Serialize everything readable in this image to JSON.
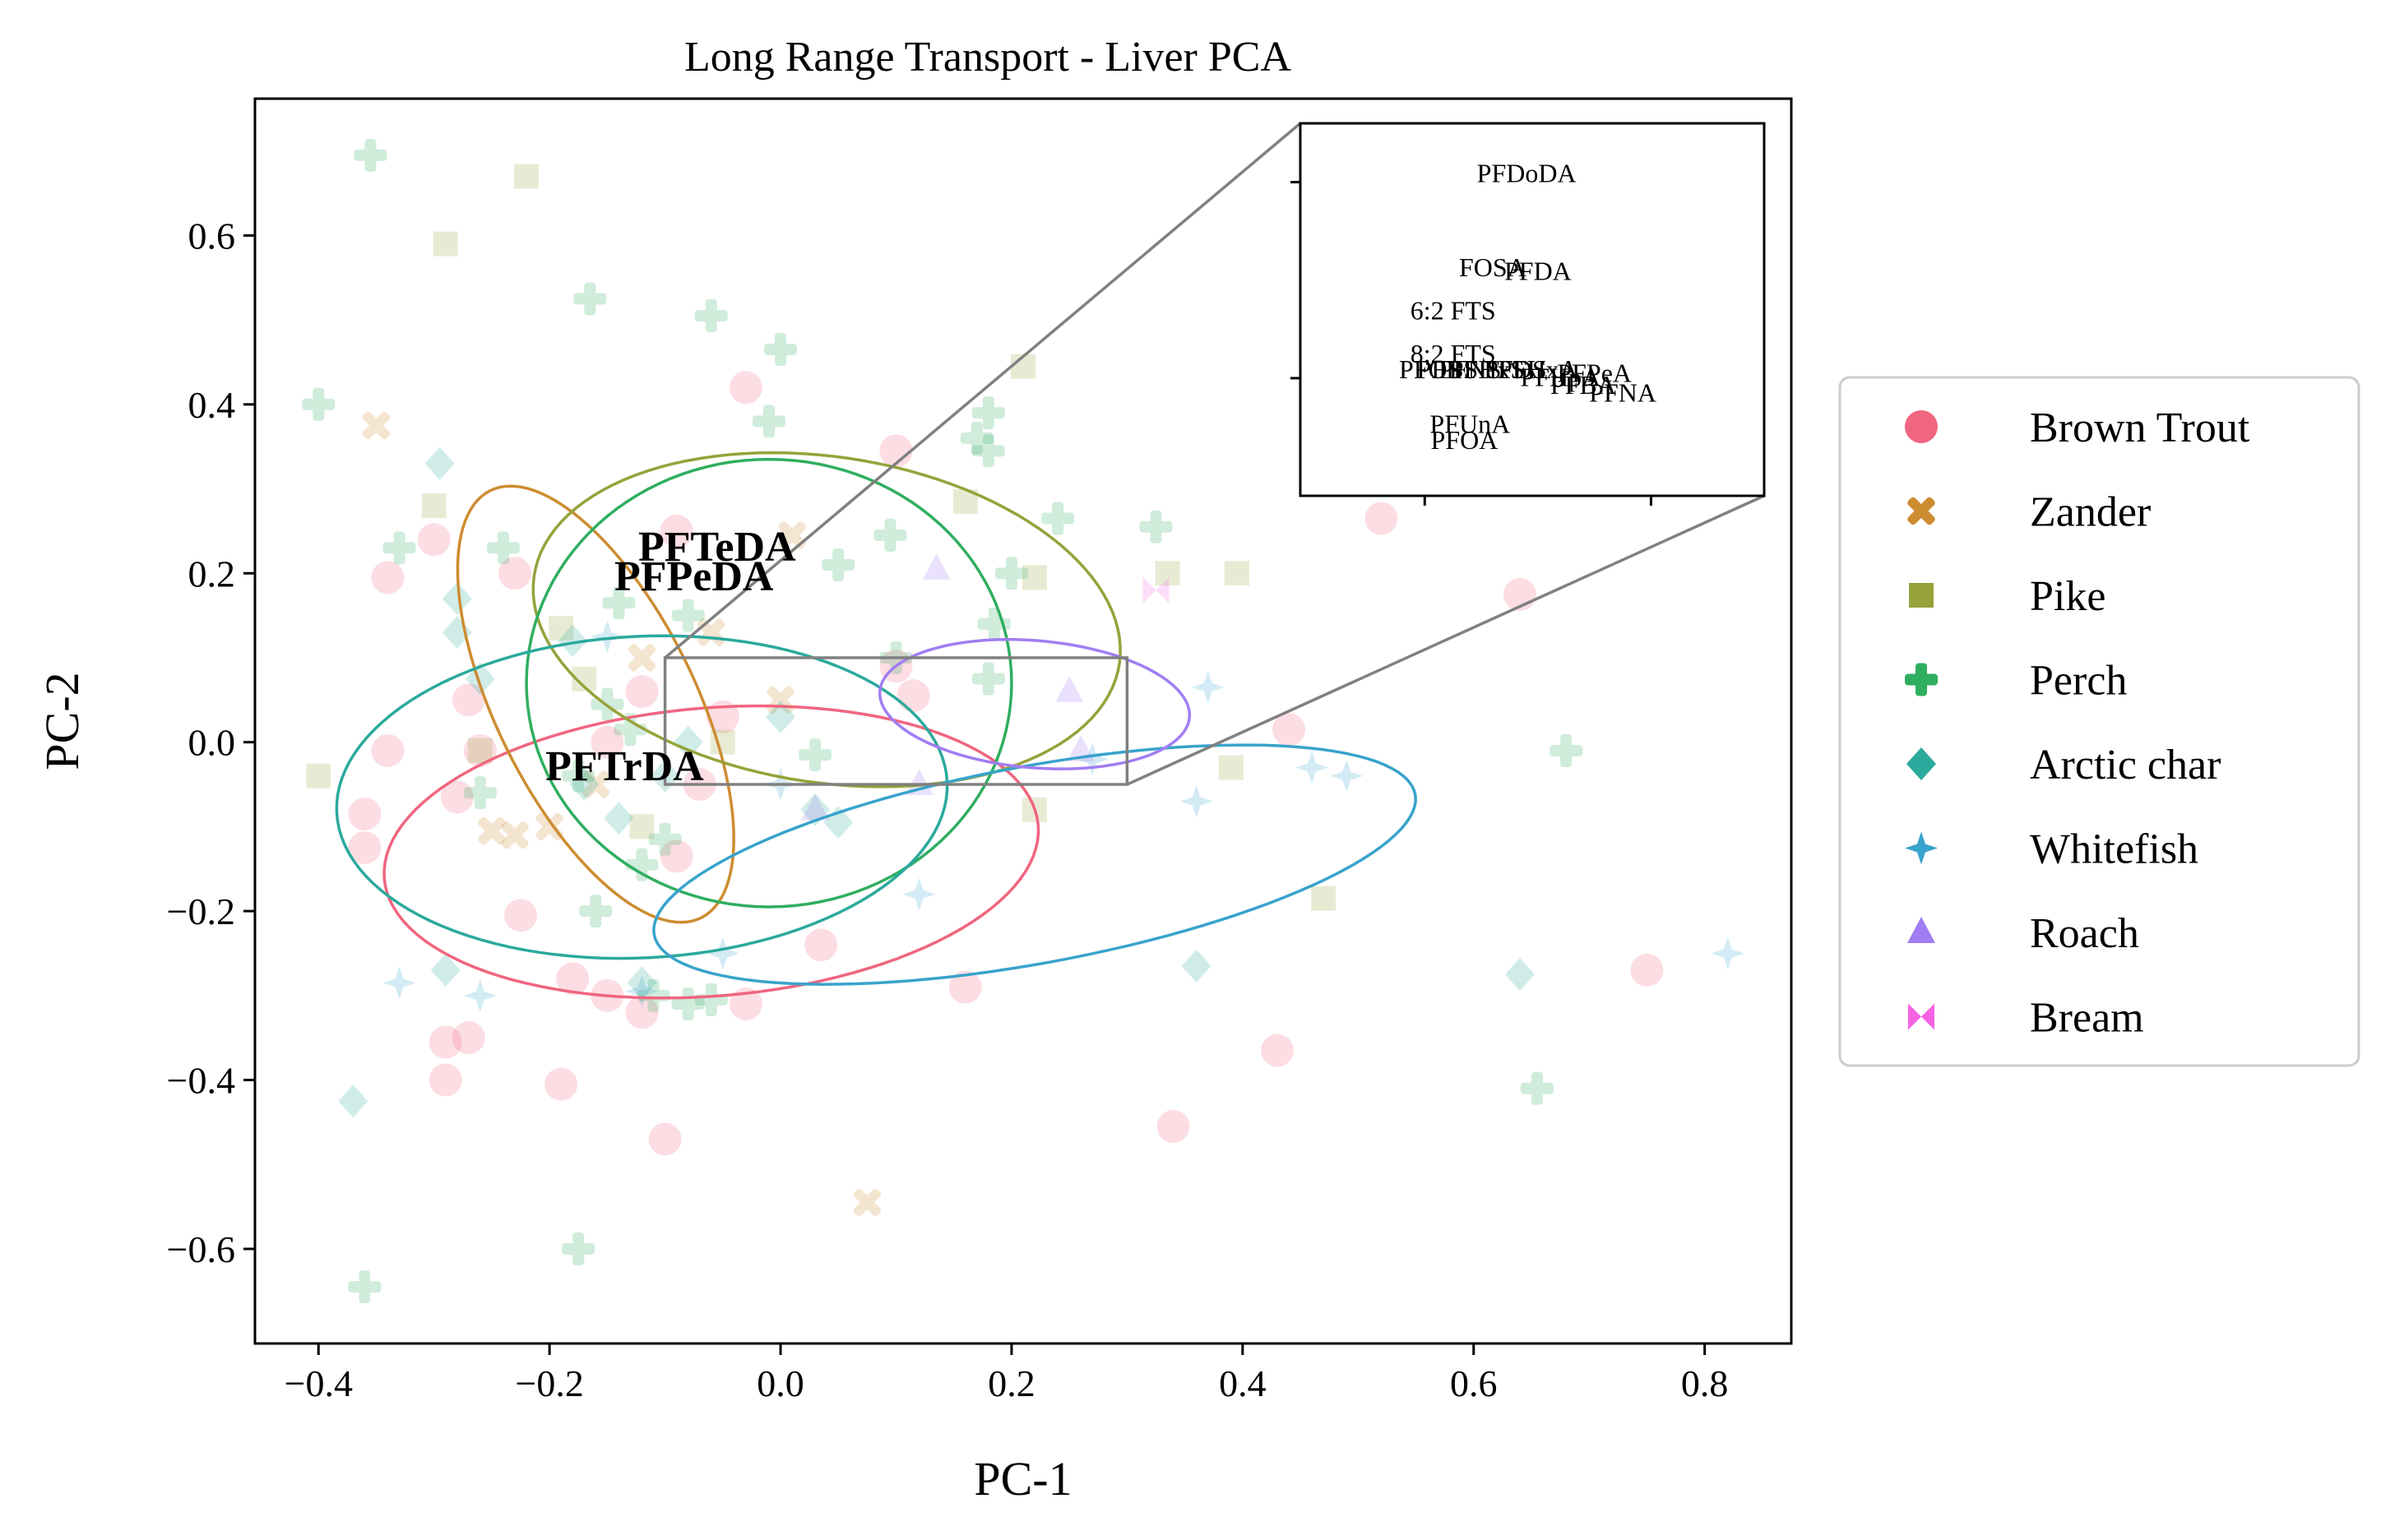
{
  "chart_data": {
    "type": "scatter",
    "title": "Long Range Transport - Liver PCA",
    "xlabel": "PC-1",
    "ylabel": "PC-2",
    "xlim": [
      -0.455,
      0.875
    ],
    "ylim": [
      -0.712,
      0.762
    ],
    "xticks": [
      -0.4,
      -0.2,
      0.0,
      0.2,
      0.4,
      0.6,
      0.8
    ],
    "xtick_labels": [
      "−0.4",
      "−0.2",
      "0.0",
      "0.2",
      "0.4",
      "0.6",
      "0.8"
    ],
    "yticks": [
      -0.6,
      -0.4,
      -0.2,
      0.0,
      0.2,
      0.4,
      0.6
    ],
    "ytick_labels": [
      "−0.6",
      "−0.4",
      "−0.2",
      "0.0",
      "0.2",
      "0.4",
      "0.6"
    ],
    "grid": false,
    "legend_position": "right, outside plot",
    "point_alpha": 0.22,
    "series": [
      {
        "name": "Brown Trout",
        "color": "#f0657f",
        "marker": "circle",
        "points": [
          [
            -0.03,
            0.42
          ],
          [
            0.1,
            0.345
          ],
          [
            -0.3,
            0.24
          ],
          [
            -0.34,
            0.195
          ],
          [
            -0.09,
            0.25
          ],
          [
            -0.34,
            -0.01
          ],
          [
            -0.36,
            -0.085
          ],
          [
            -0.36,
            -0.125
          ],
          [
            -0.28,
            -0.065
          ],
          [
            -0.27,
            0.05
          ],
          [
            -0.26,
            -0.01
          ],
          [
            -0.15,
            0.0
          ],
          [
            -0.12,
            0.06
          ],
          [
            -0.07,
            -0.05
          ],
          [
            -0.09,
            -0.135
          ],
          [
            -0.225,
            -0.205
          ],
          [
            -0.18,
            -0.28
          ],
          [
            -0.15,
            -0.3
          ],
          [
            -0.12,
            -0.32
          ],
          [
            -0.03,
            -0.31
          ],
          [
            0.035,
            -0.24
          ],
          [
            0.16,
            -0.29
          ],
          [
            -0.29,
            -0.355
          ],
          [
            -0.27,
            -0.35
          ],
          [
            -0.29,
            -0.4
          ],
          [
            -0.19,
            -0.405
          ],
          [
            -0.1,
            -0.47
          ],
          [
            0.115,
            0.055
          ],
          [
            0.34,
            -0.455
          ],
          [
            0.43,
            -0.365
          ],
          [
            0.44,
            0.015
          ],
          [
            0.52,
            0.265
          ],
          [
            0.64,
            0.175
          ],
          [
            0.75,
            -0.27
          ],
          [
            0.1,
            0.09
          ],
          [
            -0.05,
            0.03
          ],
          [
            -0.23,
            0.2
          ]
        ]
      },
      {
        "name": "Zander",
        "color": "#cd8c30",
        "marker": "x",
        "points": [
          [
            -0.35,
            0.375
          ],
          [
            0.01,
            0.245
          ],
          [
            -0.12,
            0.1
          ],
          [
            -0.25,
            -0.105
          ],
          [
            -0.23,
            -0.11
          ],
          [
            -0.2,
            -0.1
          ],
          [
            0.075,
            -0.545
          ],
          [
            -0.06,
            0.13
          ],
          [
            0.0,
            0.05
          ],
          [
            -0.16,
            -0.05
          ]
        ]
      },
      {
        "name": "Pike",
        "color": "#96a23a",
        "marker": "square",
        "points": [
          [
            -0.22,
            0.67
          ],
          [
            -0.29,
            0.59
          ],
          [
            0.21,
            0.445
          ],
          [
            -0.3,
            0.28
          ],
          [
            0.16,
            0.285
          ],
          [
            0.22,
            0.195
          ],
          [
            0.335,
            0.2
          ],
          [
            0.395,
            0.2
          ],
          [
            -0.19,
            0.135
          ],
          [
            -0.4,
            -0.04
          ],
          [
            -0.17,
            0.075
          ],
          [
            -0.12,
            -0.1
          ],
          [
            0.22,
            -0.08
          ],
          [
            0.39,
            -0.03
          ],
          [
            0.47,
            -0.185
          ],
          [
            -0.26,
            -0.01
          ],
          [
            -0.05,
            0.0
          ]
        ]
      },
      {
        "name": "Perch",
        "color": "#2fae60",
        "marker": "plus",
        "points": [
          [
            -0.355,
            0.695
          ],
          [
            -0.165,
            0.525
          ],
          [
            -0.06,
            0.505
          ],
          [
            0.0,
            0.465
          ],
          [
            -0.4,
            0.4
          ],
          [
            -0.01,
            0.38
          ],
          [
            0.18,
            0.39
          ],
          [
            0.17,
            0.36
          ],
          [
            0.18,
            0.345
          ],
          [
            -0.33,
            0.23
          ],
          [
            -0.24,
            0.23
          ],
          [
            0.05,
            0.21
          ],
          [
            0.095,
            0.245
          ],
          [
            0.24,
            0.265
          ],
          [
            0.325,
            0.255
          ],
          [
            -0.14,
            0.165
          ],
          [
            -0.08,
            0.15
          ],
          [
            0.185,
            0.14
          ],
          [
            0.18,
            0.075
          ],
          [
            -0.15,
            0.045
          ],
          [
            -0.13,
            0.015
          ],
          [
            0.03,
            -0.015
          ],
          [
            -0.175,
            -0.04
          ],
          [
            -0.26,
            -0.06
          ],
          [
            -0.1,
            -0.115
          ],
          [
            -0.12,
            -0.145
          ],
          [
            -0.16,
            -0.2
          ],
          [
            -0.08,
            -0.31
          ],
          [
            -0.11,
            -0.3
          ],
          [
            -0.06,
            -0.305
          ],
          [
            -0.175,
            -0.6
          ],
          [
            -0.36,
            -0.645
          ],
          [
            0.68,
            -0.01
          ],
          [
            0.655,
            -0.41
          ],
          [
            0.2,
            0.2
          ],
          [
            0.1,
            0.1
          ]
        ]
      },
      {
        "name": "Arctic char",
        "color": "#2ba99c",
        "marker": "diamond",
        "points": [
          [
            -0.295,
            0.33
          ],
          [
            -0.28,
            0.17
          ],
          [
            -0.28,
            0.13
          ],
          [
            -0.26,
            0.075
          ],
          [
            -0.18,
            0.12
          ],
          [
            -0.17,
            -0.05
          ],
          [
            -0.14,
            -0.09
          ],
          [
            -0.1,
            -0.04
          ],
          [
            -0.29,
            -0.27
          ],
          [
            -0.37,
            -0.425
          ],
          [
            -0.12,
            -0.285
          ],
          [
            0.03,
            -0.08
          ],
          [
            0.05,
            -0.095
          ],
          [
            0.36,
            -0.265
          ],
          [
            0.64,
            -0.275
          ],
          [
            -0.08,
            0.0
          ],
          [
            0.0,
            0.03
          ]
        ]
      },
      {
        "name": "Whitefish",
        "color": "#38a3cc",
        "marker": "star4",
        "points": [
          [
            -0.15,
            0.125
          ],
          [
            0.37,
            0.065
          ],
          [
            0.36,
            -0.07
          ],
          [
            0.46,
            -0.03
          ],
          [
            0.49,
            -0.04
          ],
          [
            0.12,
            -0.18
          ],
          [
            -0.33,
            -0.285
          ],
          [
            -0.26,
            -0.3
          ],
          [
            -0.12,
            -0.295
          ],
          [
            0.82,
            -0.25
          ],
          [
            0.27,
            -0.02
          ],
          [
            0.0,
            -0.05
          ],
          [
            -0.05,
            -0.25
          ]
        ]
      },
      {
        "name": "Roach",
        "color": "#a17df2",
        "marker": "triangle",
        "points": [
          [
            0.135,
            0.205
          ],
          [
            0.25,
            0.06
          ],
          [
            0.26,
            -0.01
          ],
          [
            0.12,
            -0.05
          ],
          [
            0.03,
            -0.08
          ]
        ]
      },
      {
        "name": "Bream",
        "color": "#f564e3",
        "marker": "bowtie",
        "points": [
          [
            0.325,
            0.18
          ]
        ]
      }
    ],
    "ellipses": [
      {
        "series": "Brown Trout",
        "center": [
          -0.06,
          -0.13
        ],
        "semi_axes": [
          0.285,
          0.17
        ],
        "angle_deg": 8
      },
      {
        "series": "Zander",
        "center": [
          -0.16,
          0.045
        ],
        "semi_axes": [
          0.27,
          0.09
        ],
        "angle_deg": 108
      },
      {
        "series": "Pike",
        "center": [
          0.04,
          0.145
        ],
        "semi_axes": [
          0.26,
          0.19
        ],
        "angle_deg": -18
      },
      {
        "series": "Perch",
        "center": [
          -0.01,
          0.07
        ],
        "semi_axes": [
          0.21,
          0.265
        ],
        "angle_deg": 0
      },
      {
        "series": "Arctic char",
        "center": [
          -0.12,
          -0.065
        ],
        "semi_axes": [
          0.265,
          0.19
        ],
        "angle_deg": 6
      },
      {
        "series": "Whitefish",
        "center": [
          0.22,
          -0.145
        ],
        "semi_axes": [
          0.34,
          0.115
        ],
        "angle_deg": 15
      },
      {
        "series": "Roach",
        "center": [
          0.22,
          0.045
        ],
        "semi_axes": [
          0.135,
          0.075
        ],
        "angle_deg": -8
      }
    ],
    "loading_labels": [
      {
        "text": "PFTeDA",
        "x": -0.055,
        "y": 0.215
      },
      {
        "text": "PFPeDA",
        "x": -0.075,
        "y": 0.18
      },
      {
        "text": "PFTrDA",
        "x": -0.135,
        "y": -0.045
      }
    ],
    "zoom_box": {
      "xlim": [
        -0.1,
        0.3
      ],
      "ylim": [
        -0.05,
        0.1
      ]
    },
    "inset": {
      "xlim": [
        0.49,
        0.9
      ],
      "ylim": [
        -0.03,
        0.065
      ],
      "xticks": [
        0.6,
        0.8
      ],
      "yticks": [
        0.0,
        0.05
      ],
      "labels": [
        {
          "text": "PFDoDA",
          "x": 0.69,
          "y": 0.05
        },
        {
          "text": "FOSA",
          "x": 0.66,
          "y": 0.026
        },
        {
          "text": "PFDA",
          "x": 0.7,
          "y": 0.025
        },
        {
          "text": "6:2 FTS",
          "x": 0.625,
          "y": 0.015
        },
        {
          "text": "8:2 FTS",
          "x": 0.625,
          "y": 0.004
        },
        {
          "text": "PFOS",
          "x": 0.605,
          "y": 0.0
        },
        {
          "text": "PFNS",
          "x": 0.64,
          "y": 0.0
        },
        {
          "text": "PFHxS",
          "x": 0.655,
          "y": 0.0
        },
        {
          "text": "PFBS",
          "x": 0.62,
          "y": 0.0
        },
        {
          "text": "PFDS",
          "x": 0.68,
          "y": 0.0
        },
        {
          "text": "PFHxA",
          "x": 0.7,
          "y": 0.0
        },
        {
          "text": "PFHpA",
          "x": 0.72,
          "y": -0.002
        },
        {
          "text": "PFPeA",
          "x": 0.75,
          "y": -0.001
        },
        {
          "text": "PFBA",
          "x": 0.74,
          "y": -0.004
        },
        {
          "text": "PFNA",
          "x": 0.775,
          "y": -0.006
        },
        {
          "text": "PFUnA",
          "x": 0.64,
          "y": -0.014
        },
        {
          "text": "PFOA",
          "x": 0.635,
          "y": -0.018
        }
      ]
    }
  }
}
